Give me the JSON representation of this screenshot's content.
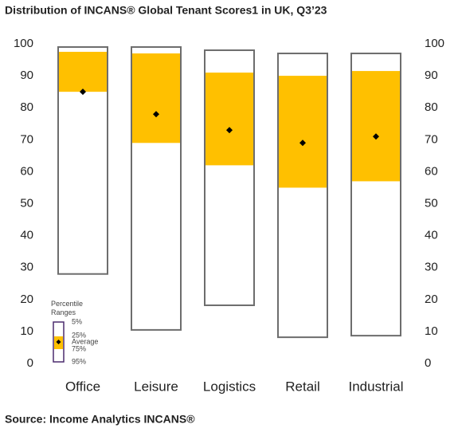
{
  "chart_data": {
    "type": "range",
    "title": "Distribution of INCANS® Global Tenant Scores1 in UK, Q3’23",
    "source": "Source: Income Analytics INCANS®",
    "legend_title": "Percentile Ranges",
    "categories": [
      "Office",
      "Leisure",
      "Logistics",
      "Retail",
      "Industrial"
    ],
    "series": [
      {
        "name": "5%",
        "color": "#6d6d6d",
        "values": [
          99,
          99,
          98,
          97,
          97
        ]
      },
      {
        "name": "25%",
        "color": "#ffc000",
        "values": [
          97.5,
          97,
          91,
          90,
          91.5
        ]
      },
      {
        "name": "Average",
        "color": "#000000",
        "values": [
          85,
          78,
          73,
          69,
          71
        ]
      },
      {
        "name": "75%",
        "color": "#ffc000",
        "values": [
          85,
          69,
          62,
          55,
          57
        ]
      },
      {
        "name": "95%",
        "color": "#6d6d6d",
        "values": [
          28,
          10.5,
          18.2,
          8.2,
          8.7
        ]
      }
    ],
    "ylim": [
      0,
      100
    ],
    "yticks": [
      0,
      10,
      20,
      30,
      40,
      50,
      60,
      70,
      80,
      90,
      100
    ],
    "y2lim": [
      0,
      100
    ],
    "y2ticks": [
      0,
      10,
      20,
      30,
      40,
      50,
      60,
      70,
      80,
      90,
      100
    ]
  }
}
